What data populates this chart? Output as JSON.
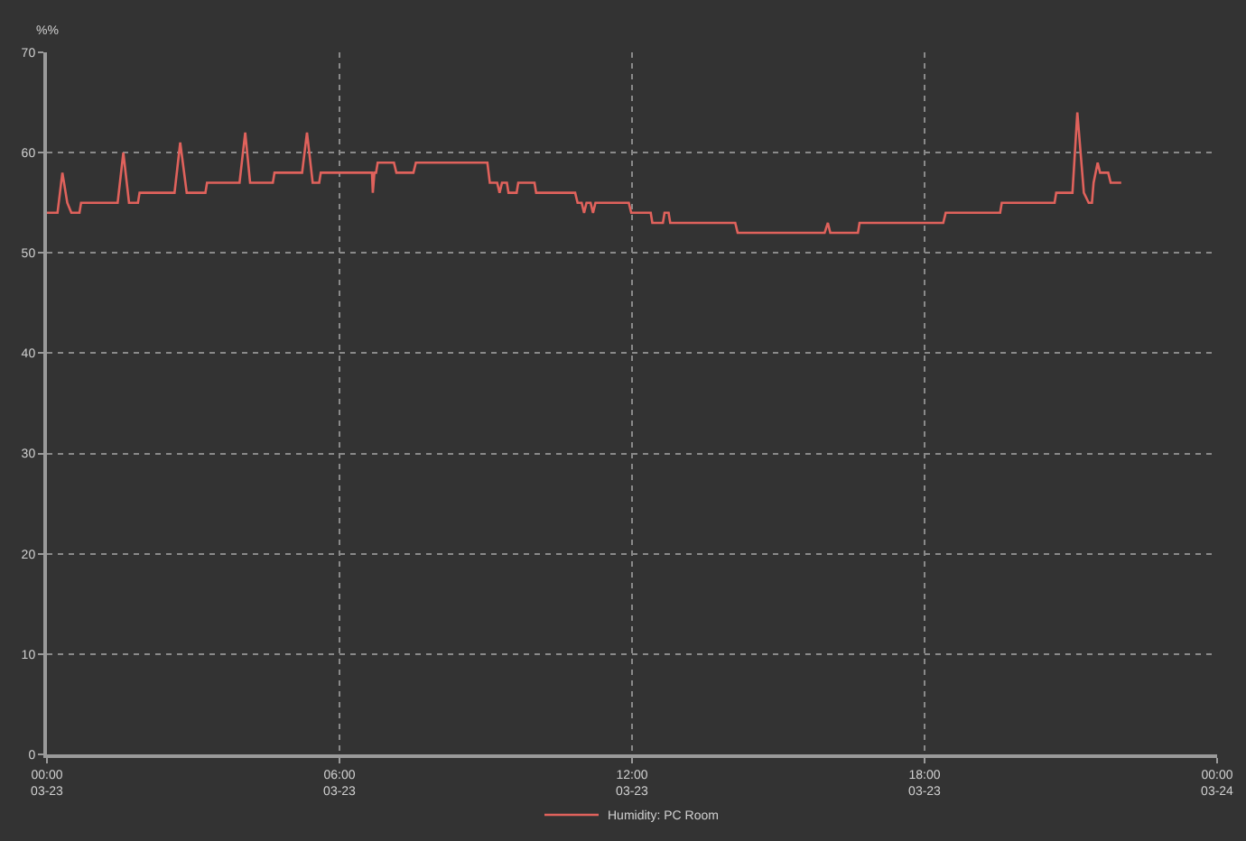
{
  "chart_data": {
    "type": "line",
    "ylabel": "%%",
    "x": [
      "--03-23T00:00",
      "--03-23T00:13",
      "--03-23T00:19",
      "--03-23T00:25",
      "--03-23T00:30",
      "--03-23T00:40",
      "--03-23T00:42",
      "--03-23T01:27",
      "--03-23T01:34",
      "--03-23T01:41",
      "--03-23T01:52",
      "--03-23T01:54",
      "--03-23T02:37",
      "--03-23T02:44",
      "--03-23T02:52",
      "--03-23T03:15",
      "--03-23T03:17",
      "--03-23T03:57",
      "--03-23T04:04",
      "--03-23T04:10",
      "--03-23T04:38",
      "--03-23T04:40",
      "--03-23T05:14",
      "--03-23T05:20",
      "--03-23T05:27",
      "--03-23T05:35",
      "--03-23T05:37",
      "--03-23T06:40",
      "--03-23T06:41",
      "--03-23T06:43",
      "--03-23T06:45",
      "--03-23T06:47",
      "--03-23T07:07",
      "--03-23T07:10",
      "--03-23T07:31",
      "--03-23T07:34",
      "--03-23T09:02",
      "--03-23T09:05",
      "--03-23T09:14",
      "--03-23T09:17",
      "--03-23T09:20",
      "--03-23T09:26",
      "--03-23T09:28",
      "--03-23T09:38",
      "--03-23T09:40",
      "--03-23T10:00",
      "--03-23T10:02",
      "--03-23T10:50",
      "--03-23T10:53",
      "--03-23T10:58",
      "--03-23T11:01",
      "--03-23T11:04",
      "--03-23T11:09",
      "--03-23T11:12",
      "--03-23T11:15",
      "--03-23T11:56",
      "--03-23T11:59",
      "--03-23T12:23",
      "--03-23T12:25",
      "--03-23T12:38",
      "--03-23T12:40",
      "--03-23T12:45",
      "--03-23T12:47",
      "--03-23T14:07",
      "--03-23T14:10",
      "--03-23T15:57",
      "--03-23T16:01",
      "--03-23T16:04",
      "--03-23T16:38",
      "--03-23T16:40",
      "--03-23T18:23",
      "--03-23T18:26",
      "--03-23T19:33",
      "--03-23T19:35",
      "--03-23T20:40",
      "--03-23T20:42",
      "--03-23T21:02",
      "--03-23T21:08",
      "--03-23T21:16",
      "--03-23T21:22",
      "--03-23T21:26",
      "--03-23T21:28",
      "--03-23T21:33",
      "--03-23T21:36",
      "--03-23T21:46",
      "--03-23T21:49",
      "--03-23T22:02"
    ],
    "series": [
      {
        "name": "Humidity: PC Room",
        "color": "#e0625c",
        "values": [
          54,
          54,
          58,
          55,
          54,
          54,
          55,
          55,
          60,
          55,
          55,
          56,
          56,
          61,
          56,
          56,
          57,
          57,
          62,
          57,
          57,
          58,
          58,
          62,
          57,
          57,
          58,
          58,
          56,
          58,
          58,
          59,
          59,
          58,
          58,
          59,
          59,
          57,
          57,
          56,
          57,
          57,
          56,
          56,
          57,
          57,
          56,
          56,
          55,
          55,
          54,
          55,
          55,
          54,
          55,
          55,
          54,
          54,
          53,
          53,
          54,
          54,
          53,
          53,
          52,
          52,
          53,
          52,
          52,
          53,
          53,
          54,
          54,
          55,
          55,
          56,
          56,
          64,
          56,
          55,
          55,
          57,
          59,
          58,
          58,
          57,
          57
        ]
      }
    ],
    "xlim": [
      "--03-23T00:00",
      "--03-24T00:00"
    ],
    "xticks": [
      {
        "value": "--03-23T00:00",
        "label": "00:00\n03-23"
      },
      {
        "value": "--03-23T06:00",
        "label": "06:00\n03-23"
      },
      {
        "value": "--03-23T12:00",
        "label": "12:00\n03-23"
      },
      {
        "value": "--03-23T18:00",
        "label": "18:00\n03-23"
      },
      {
        "value": "--03-24T00:00",
        "label": "00:00\n03-24"
      }
    ],
    "ylim": [
      0,
      70
    ],
    "yticks": [
      0,
      10,
      20,
      30,
      40,
      50,
      60,
      70
    ],
    "grid": true,
    "legend": "bottom"
  }
}
